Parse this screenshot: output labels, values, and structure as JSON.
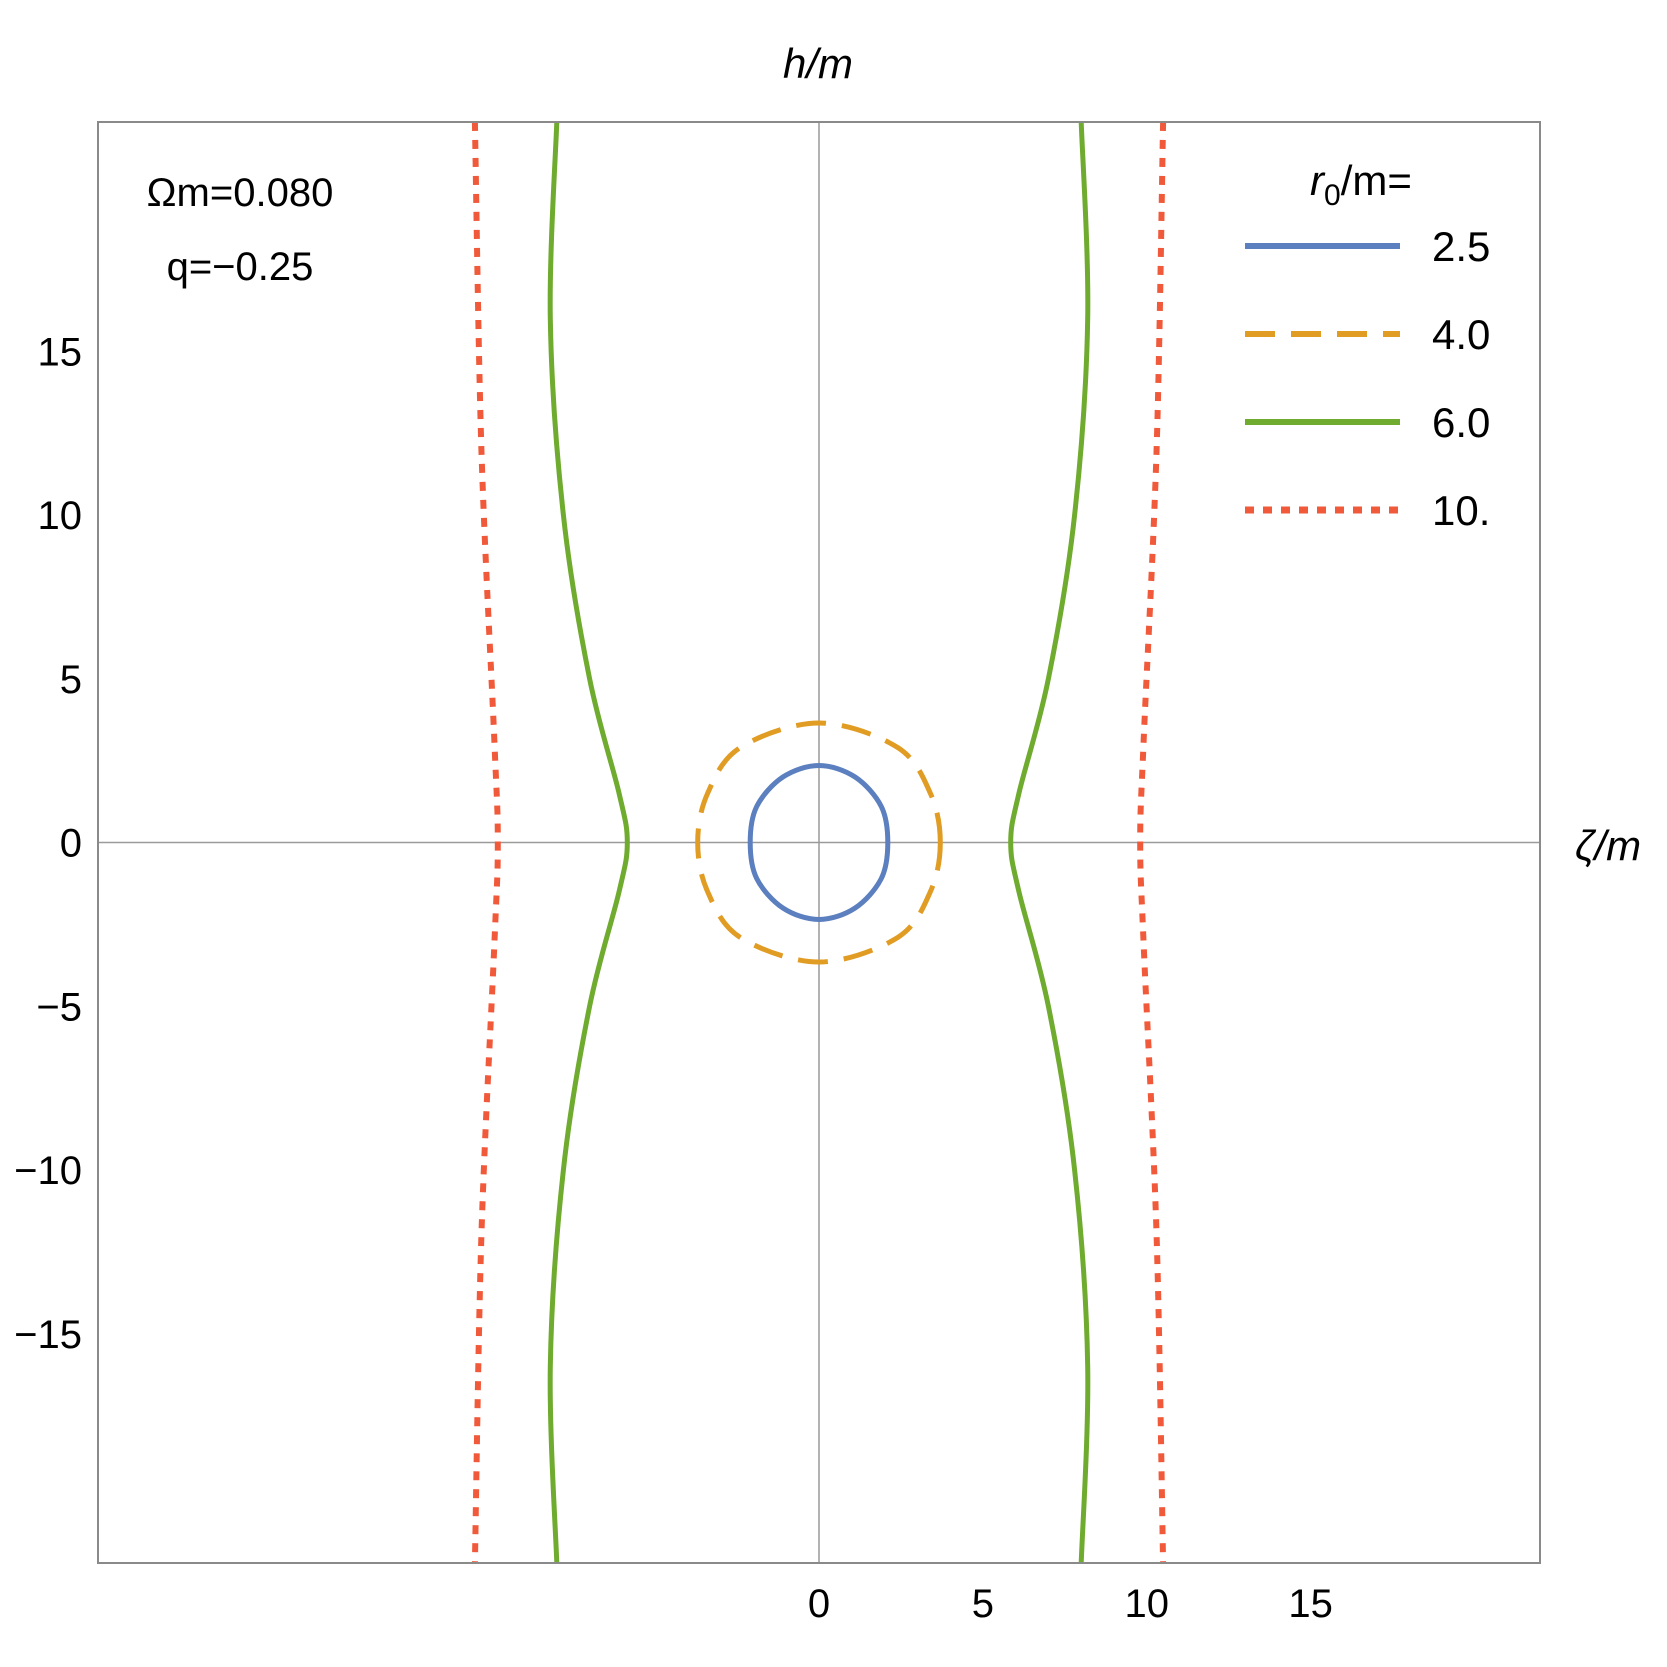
{
  "chart_data": {
    "type": "line",
    "xlabel": "ζ/m",
    "ylabel": "h/m",
    "xlim": [
      -22,
      22
    ],
    "ylim": [
      -22,
      22
    ],
    "grid": false,
    "x_ticks": [
      0,
      5,
      10,
      15
    ],
    "x_tick_labels": [
      "0",
      "5",
      "10",
      "15"
    ],
    "y_ticks": [
      -15,
      -10,
      -5,
      0,
      5,
      10,
      15
    ],
    "y_tick_labels": [
      "−15",
      "−10",
      "−5",
      "0",
      "5",
      "10",
      "15"
    ],
    "annotations": [
      "Ωm=0.080",
      "q=−0.25"
    ],
    "legend": {
      "title_main": "r",
      "title_sub": "0",
      "title_rest": "/m=",
      "placement": "top-right"
    },
    "series": [
      {
        "name": "2.5",
        "color": "#5b7fbf",
        "style": "solid",
        "closed": true,
        "points": [
          [
            2.1,
            0
          ],
          [
            1.9,
            1.1
          ],
          [
            1.1,
            2.0
          ],
          [
            0,
            2.35
          ],
          [
            -1.1,
            2.0
          ],
          [
            -1.9,
            1.1
          ],
          [
            -2.1,
            0
          ],
          [
            -1.9,
            -1.1
          ],
          [
            -1.1,
            -2.0
          ],
          [
            0,
            -2.35
          ],
          [
            1.1,
            -2.0
          ],
          [
            1.9,
            -1.1
          ]
        ]
      },
      {
        "name": "4.0",
        "color": "#e19c24",
        "style": "dashed",
        "closed": true,
        "points": [
          [
            3.7,
            0
          ],
          [
            3.4,
            1.5
          ],
          [
            2.4,
            2.9
          ],
          [
            0,
            3.65
          ],
          [
            -2.4,
            2.9
          ],
          [
            -3.4,
            1.5
          ],
          [
            -3.7,
            0
          ],
          [
            -3.4,
            -1.5
          ],
          [
            -2.4,
            -2.9
          ],
          [
            0,
            -3.65
          ],
          [
            2.4,
            -2.9
          ],
          [
            3.4,
            -1.5
          ]
        ]
      },
      {
        "name": "6.0",
        "color": "#6fab2e",
        "style": "solid",
        "closed": false,
        "branches": [
          [
            [
              -8.0,
              22
            ],
            [
              -8.2,
              16
            ],
            [
              -7.8,
              10
            ],
            [
              -7.0,
              5
            ],
            [
              -6.1,
              1.5
            ],
            [
              -5.85,
              0
            ],
            [
              -6.1,
              -1.5
            ],
            [
              -7.0,
              -5
            ],
            [
              -7.8,
              -10
            ],
            [
              -8.2,
              -16
            ],
            [
              -8.0,
              -22
            ]
          ],
          [
            [
              8.0,
              22
            ],
            [
              8.2,
              16
            ],
            [
              7.8,
              10
            ],
            [
              7.0,
              5
            ],
            [
              6.1,
              1.5
            ],
            [
              5.85,
              0
            ],
            [
              6.1,
              -1.5
            ],
            [
              7.0,
              -5
            ],
            [
              7.8,
              -10
            ],
            [
              8.2,
              -16
            ],
            [
              8.0,
              -22
            ]
          ]
        ]
      },
      {
        "name": "10.",
        "color": "#f05a3a",
        "style": "dotted",
        "closed": false,
        "branches": [
          [
            [
              -10.5,
              22
            ],
            [
              -10.3,
              12
            ],
            [
              -9.9,
              3
            ],
            [
              -9.8,
              0
            ],
            [
              -9.9,
              -3
            ],
            [
              -10.3,
              -12
            ],
            [
              -10.5,
              -22
            ]
          ],
          [
            [
              10.5,
              22
            ],
            [
              10.3,
              12
            ],
            [
              9.9,
              3
            ],
            [
              9.8,
              0
            ],
            [
              9.9,
              -3
            ],
            [
              10.3,
              -12
            ],
            [
              10.5,
              -22
            ]
          ]
        ]
      }
    ]
  }
}
